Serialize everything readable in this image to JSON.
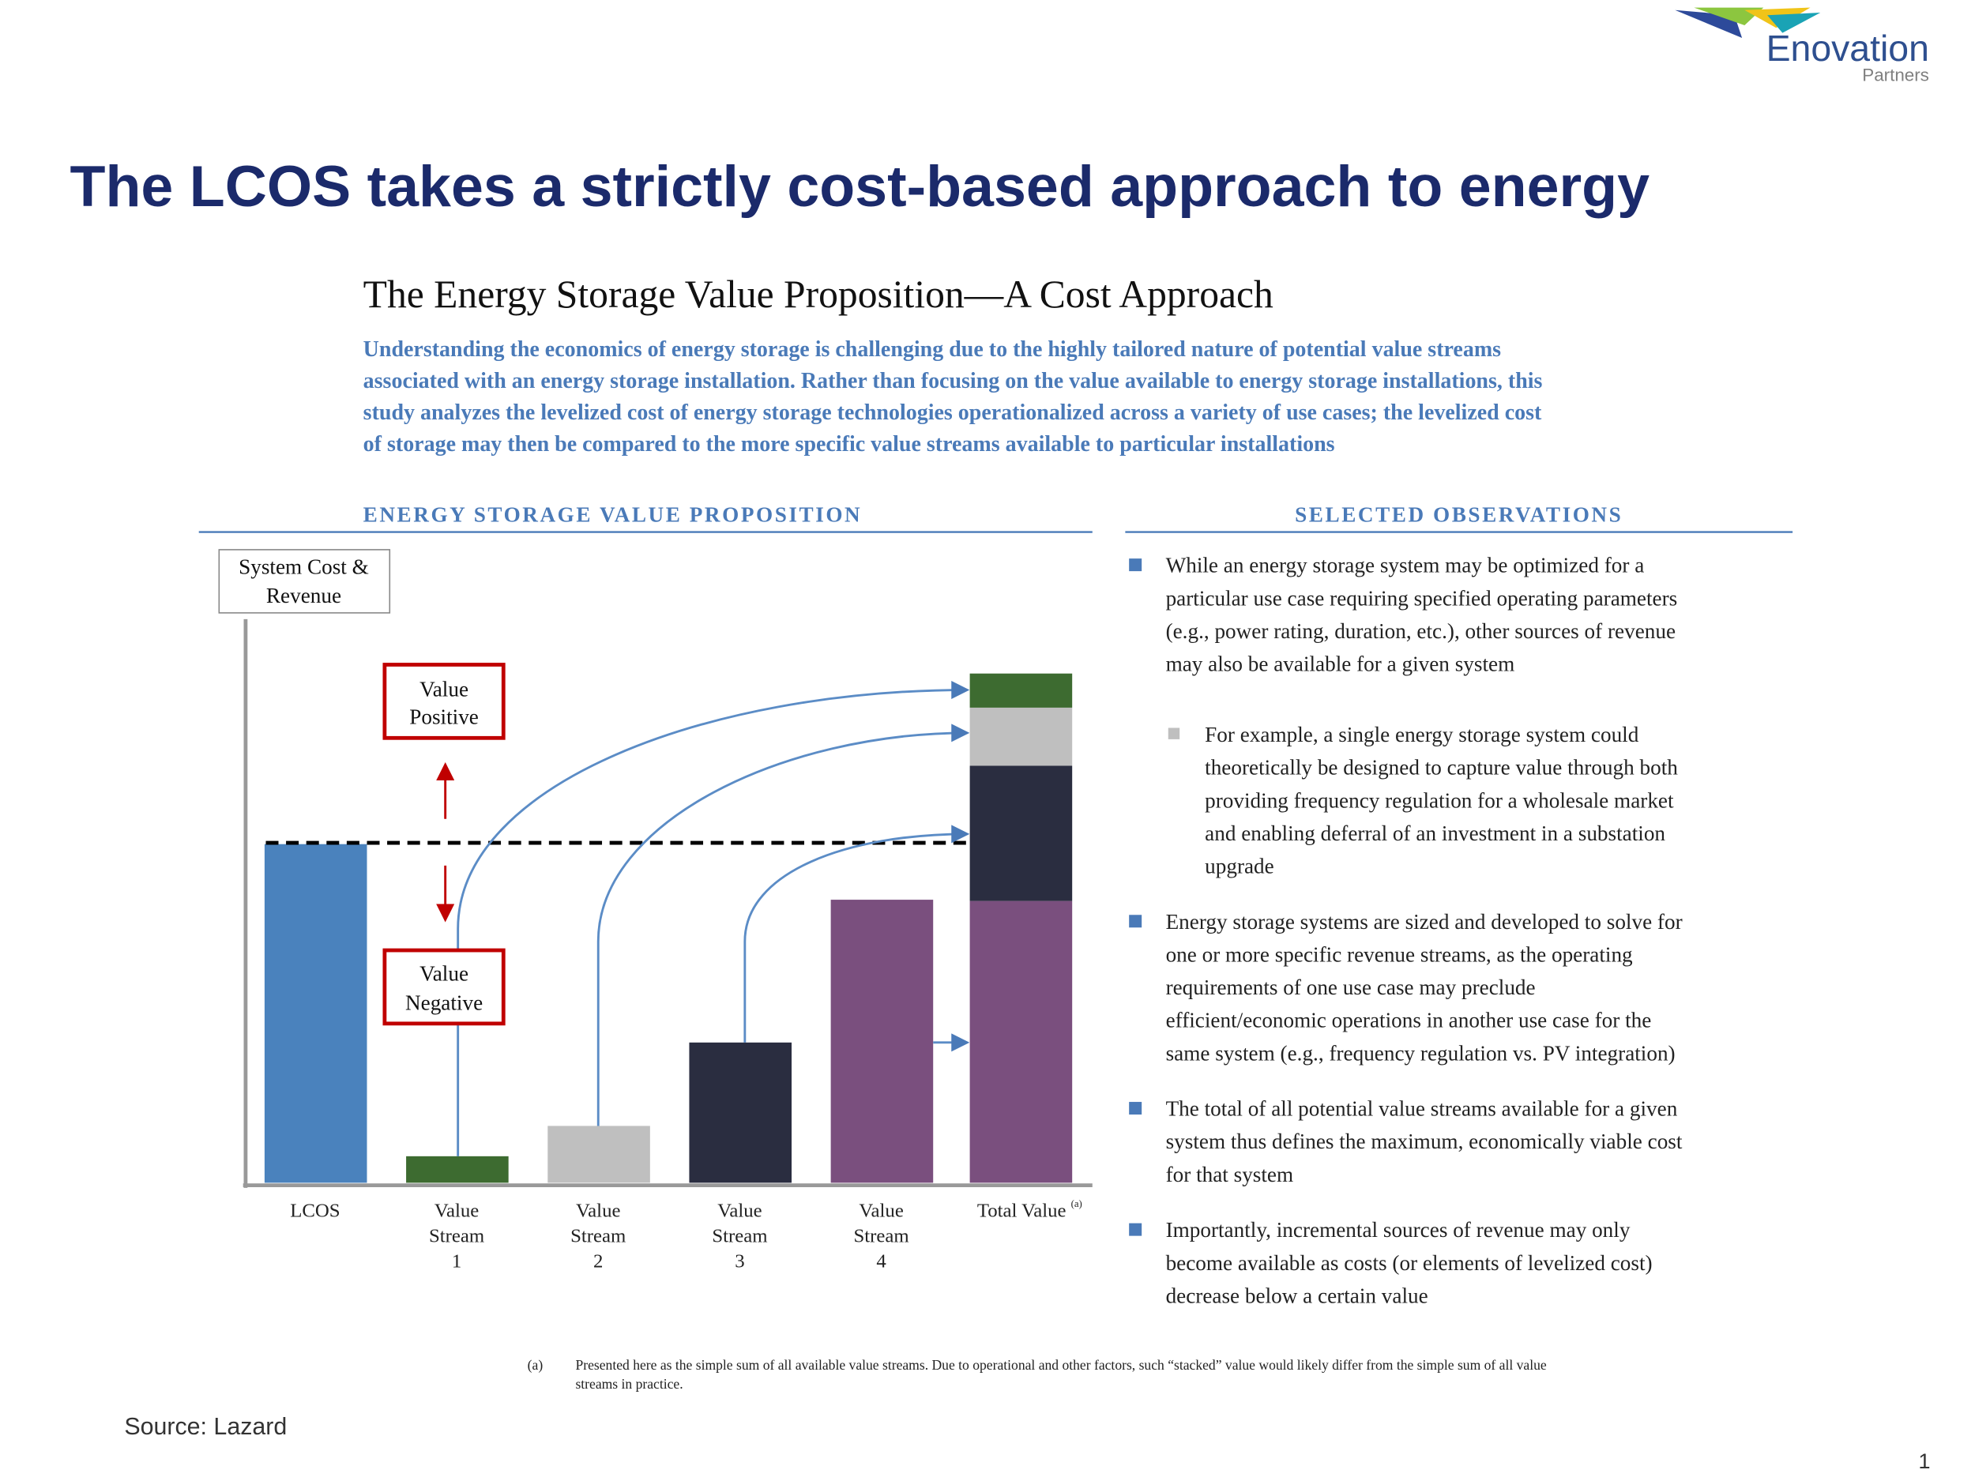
{
  "logo": {
    "name": "Enovation",
    "sub": "Partners"
  },
  "title": "The LCOS takes a strictly cost-based approach to energy",
  "figure": {
    "heading": "The Energy Storage Value Proposition—A Cost Approach",
    "intro": [
      "Understanding the economics of energy storage is challenging due to the highly tailored nature of potential value streams",
      "associated with an energy storage installation. Rather than focusing on the value available to energy storage installations, this",
      "study analyzes the levelized cost of energy storage technologies operationalized across a variety of use cases; the levelized cost",
      "of storage may then be compared to the more specific value streams available to particular installations"
    ],
    "left_heading": "ENERGY STORAGE VALUE PROPOSITION",
    "right_heading": "SELECTED OBSERVATIONS",
    "diagram": {
      "axis_label": [
        "System Cost &",
        "Revenue"
      ],
      "value_positive": [
        "Value",
        "Positive"
      ],
      "value_negative": [
        "Value",
        "Negative"
      ],
      "categories": [
        [
          "LCOS"
        ],
        [
          "Value",
          "Stream",
          "1"
        ],
        [
          "Value",
          "Stream",
          "2"
        ],
        [
          "Value",
          "Stream",
          "3"
        ],
        [
          "Value",
          "Stream",
          "4"
        ],
        [
          "Total Value"
        ]
      ],
      "total_note": "(a)"
    },
    "observations": [
      {
        "level": 1,
        "lines": [
          "While an energy storage system may be optimized for a",
          "particular use case requiring specified operating parameters",
          "(e.g., power rating, duration, etc.), other sources of revenue",
          "may also be available for a given system"
        ]
      },
      {
        "level": 2,
        "lines": [
          "For example, a single energy storage system could",
          "theoretically be designed to capture value through both",
          "providing frequency regulation for a wholesale market",
          "and enabling deferral of an investment in a substation",
          "upgrade"
        ]
      },
      {
        "level": 1,
        "lines": [
          "Energy storage systems are sized and developed to solve for",
          "one or more specific revenue streams, as the operating",
          "requirements of one use case may preclude",
          "efficient/economic operations in another use case for the",
          "same system (e.g., frequency regulation vs. PV integration)"
        ]
      },
      {
        "level": 1,
        "lines": [
          "The total of all potential value streams available for a given",
          "system thus defines the maximum, economically viable cost",
          "for that system"
        ]
      },
      {
        "level": 1,
        "lines": [
          "Importantly, incremental sources of revenue may only",
          "become available as costs (or elements of levelized cost)",
          "decrease below a certain value"
        ]
      }
    ],
    "footnote": {
      "marker": "(a)",
      "lines": [
        "Presented here as the simple sum of all available value streams. Due to operational and other factors, such “stacked” value would likely differ from the simple sum of all value",
        "streams in practice."
      ]
    }
  },
  "source": "Source: Lazard",
  "page_number": "1"
}
